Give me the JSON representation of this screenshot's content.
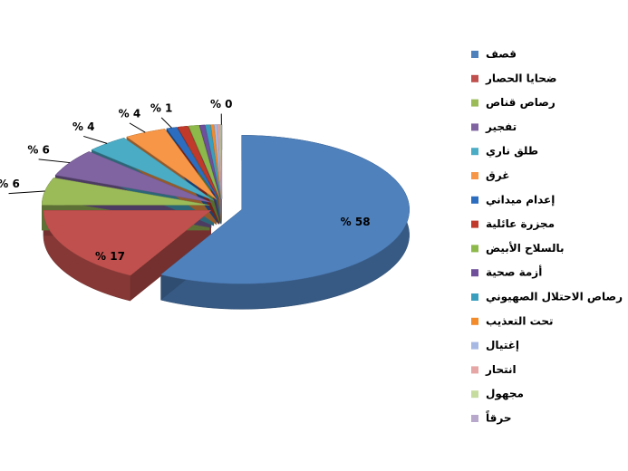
{
  "chart_data": {
    "type": "pie3d",
    "categories": [
      "قصف",
      "ضحايا الحصار",
      "رصاص قناص",
      "تفجير",
      "طلق ناري",
      "غرق",
      "إعدام ميداني",
      "مجزرة عائلية",
      "بالسلاح الأبيض",
      "أزمة صحية",
      "رصاص الاحتلال الصهيوني",
      "تحت التعذيب",
      "إغتيال",
      "انتحار",
      "مجهول",
      "حرقاً"
    ],
    "values": [
      58,
      17,
      6,
      6,
      4,
      4,
      1,
      1,
      1,
      0.5,
      0.5,
      0.3,
      0.3,
      0.2,
      0.1,
      0.1
    ],
    "value_labels": [
      "% 58",
      "% 17",
      "% 6",
      "% 6",
      "% 4",
      "% 4",
      "% 1",
      null,
      null,
      null,
      null,
      null,
      null,
      null,
      null,
      "% 0"
    ],
    "colors": [
      "#4F81BD",
      "#C0504D",
      "#9BBB59",
      "#8064A2",
      "#4BACC6",
      "#F79646",
      "#2C6DBF",
      "#C0392B",
      "#8DB84A",
      "#6F4F9A",
      "#3A9FBF",
      "#F38B2A",
      "#A7B9E3",
      "#E6A6A5",
      "#C6DC9E",
      "#B7A8CC"
    ],
    "legend": "right"
  }
}
